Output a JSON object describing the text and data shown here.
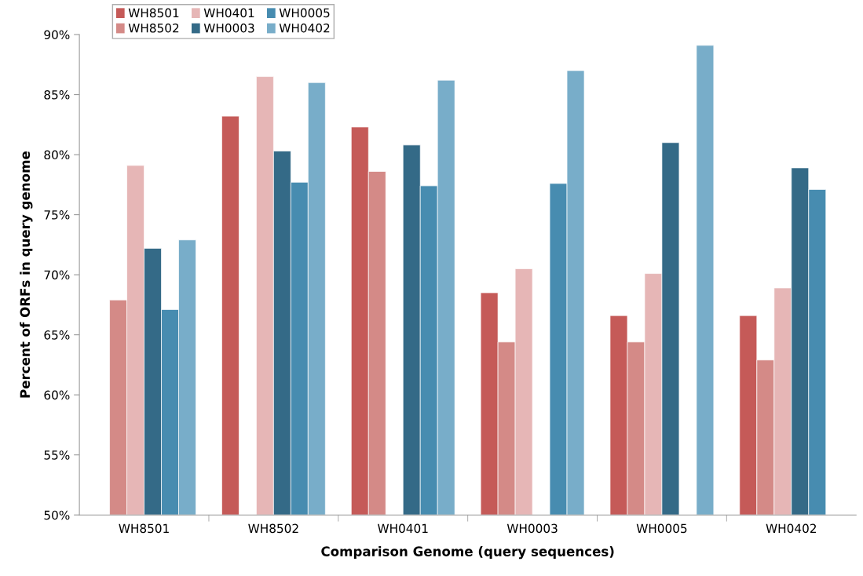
{
  "chart_data": {
    "type": "bar",
    "xlabel": "Comparison Genome (query sequences)",
    "ylabel": "Percent of ORFs in query genome",
    "categories": [
      "WH8501",
      "WH8502",
      "WH0401",
      "WH0003",
      "WH0005",
      "WH0402"
    ],
    "series": [
      {
        "name": "WH8501",
        "color": "#c55a58",
        "values": [
          null,
          83.2,
          82.3,
          68.5,
          66.6,
          66.6
        ]
      },
      {
        "name": "WH8502",
        "color": "#d48a87",
        "values": [
          67.9,
          null,
          78.6,
          64.4,
          64.4,
          62.9
        ]
      },
      {
        "name": "WH0401",
        "color": "#e6b6b6",
        "values": [
          79.1,
          86.5,
          null,
          70.5,
          70.1,
          68.9
        ]
      },
      {
        "name": "WH0003",
        "color": "#346a87",
        "values": [
          72.2,
          80.3,
          80.8,
          null,
          81.0,
          78.9
        ]
      },
      {
        "name": "WH0005",
        "color": "#478cb0",
        "values": [
          67.1,
          77.7,
          77.4,
          77.6,
          null,
          77.1
        ]
      },
      {
        "name": "WH0402",
        "color": "#78adc9",
        "values": [
          72.9,
          86.0,
          86.2,
          87.0,
          89.1,
          null
        ]
      }
    ],
    "ylim": [
      50,
      90
    ],
    "yticks": [
      {
        "value": 50,
        "label": "50%"
      },
      {
        "value": 55,
        "label": "55%"
      },
      {
        "value": 60,
        "label": "60%"
      },
      {
        "value": 65,
        "label": "65%"
      },
      {
        "value": 70,
        "label": "70%"
      },
      {
        "value": 75,
        "label": "75%"
      },
      {
        "value": 80,
        "label": "80%"
      },
      {
        "value": 85,
        "label": "85%"
      },
      {
        "value": 90,
        "label": "90%"
      }
    ],
    "grid": false,
    "legend": "top left"
  }
}
